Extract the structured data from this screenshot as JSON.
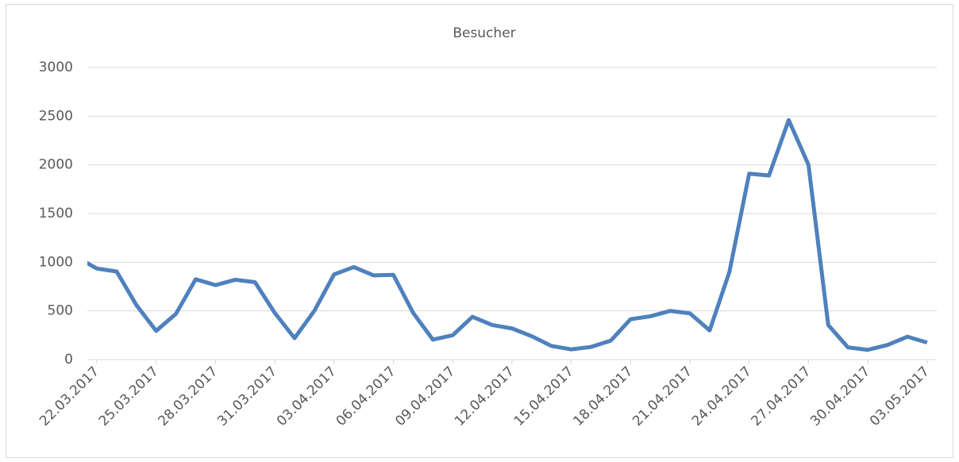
{
  "chart_data": {
    "type": "line",
    "title": "Besucher",
    "categories": [
      null,
      "22.03.2017",
      null,
      null,
      "25.03.2017",
      null,
      null,
      "28.03.2017",
      null,
      null,
      "31.03.2017",
      null,
      null,
      "03.04.2017",
      null,
      null,
      "06.04.2017",
      null,
      null,
      "09.04.2017",
      null,
      null,
      "12.04.2017",
      null,
      null,
      "15.04.2017",
      null,
      null,
      "18.04.2017",
      null,
      null,
      "21.04.2017",
      null,
      null,
      "24.04.2017",
      null,
      null,
      "27.04.2017",
      null,
      null,
      "30.04.2017",
      null,
      null,
      "03.05.2017"
    ],
    "series": [
      {
        "name": "Besucher",
        "color": "#4f81bd",
        "values": [
          1050,
          935,
          905,
          560,
          295,
          470,
          825,
          765,
          820,
          795,
          480,
          220,
          500,
          875,
          950,
          865,
          870,
          480,
          205,
          250,
          440,
          355,
          320,
          240,
          140,
          105,
          130,
          195,
          415,
          445,
          500,
          475,
          300,
          900,
          1910,
          1890,
          2460,
          2000,
          355,
          125,
          100,
          150,
          235,
          175
        ]
      }
    ],
    "ylim": [
      0,
      3000
    ],
    "yticks": [
      0,
      500,
      1000,
      1500,
      2000,
      2500,
      3000
    ],
    "grid": true
  }
}
